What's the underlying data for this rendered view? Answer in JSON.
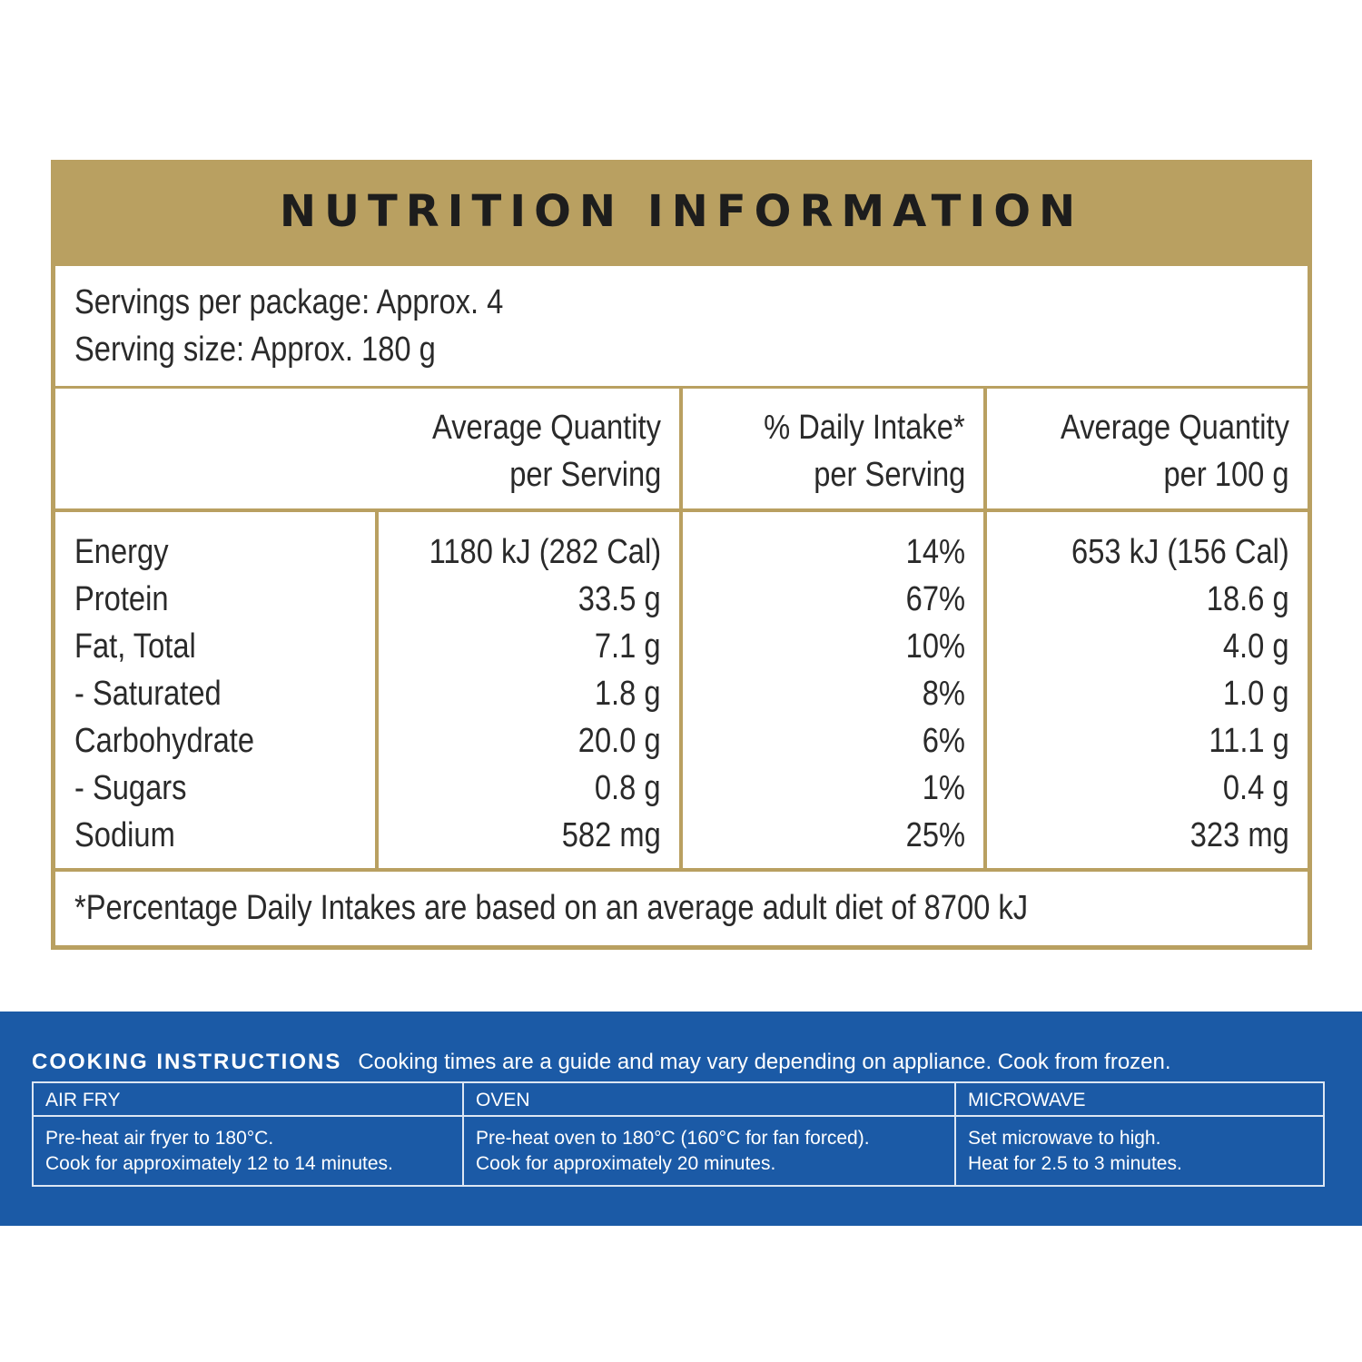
{
  "nutrition": {
    "title": "NUTRITION INFORMATION",
    "servings_per_package": "Servings per package: Approx. 4",
    "serving_size": "Serving size: Approx. 180 g",
    "headers": [
      {
        "line1": "Average Quantity",
        "line2": "per Serving"
      },
      {
        "line1": "% Daily Intake*",
        "line2": "per Serving"
      },
      {
        "line1": "Average Quantity",
        "line2": "per 100 g"
      }
    ],
    "rows": [
      {
        "name": "Energy",
        "per_serving": "1180 kJ (282 Cal)",
        "daily_intake": "14%",
        "per_100g": "653 kJ (156 Cal)"
      },
      {
        "name": "Protein",
        "per_serving": "33.5 g",
        "daily_intake": "67%",
        "per_100g": "18.6 g"
      },
      {
        "name": "Fat, Total",
        "per_serving": "7.1 g",
        "daily_intake": "10%",
        "per_100g": "4.0 g"
      },
      {
        "name": "- Saturated",
        "per_serving": "1.8 g",
        "daily_intake": "8%",
        "per_100g": "1.0 g"
      },
      {
        "name": "Carbohydrate",
        "per_serving": "20.0 g",
        "daily_intake": "6%",
        "per_100g": "11.1 g"
      },
      {
        "name": "- Sugars",
        "per_serving": "0.8 g",
        "daily_intake": "1%",
        "per_100g": "0.4 g"
      },
      {
        "name": "Sodium",
        "per_serving": "582 mg",
        "daily_intake": "25%",
        "per_100g": "323 mg"
      }
    ],
    "footnote": "*Percentage Daily Intakes are based on an average adult diet of 8700 kJ"
  },
  "cooking": {
    "heading": "COOKING INSTRUCTIONS",
    "subheading": "Cooking times are a guide and may vary depending on appliance. Cook from frozen.",
    "methods": [
      {
        "name": "AIR FRY",
        "line1": "Pre-heat air fryer to 180°C.",
        "line2": "Cook for approximately 12 to 14 minutes."
      },
      {
        "name": "OVEN",
        "line1": "Pre-heat oven to 180°C  (160°C  for fan forced).",
        "line2": "Cook for approximately 20 minutes."
      },
      {
        "name": "MICROWAVE",
        "line1": "Set microwave to high.",
        "line2": "Heat for 2.5 to 3 minutes."
      }
    ]
  },
  "colors": {
    "gold": "#b9a061",
    "blue": "#1b5aa6"
  }
}
